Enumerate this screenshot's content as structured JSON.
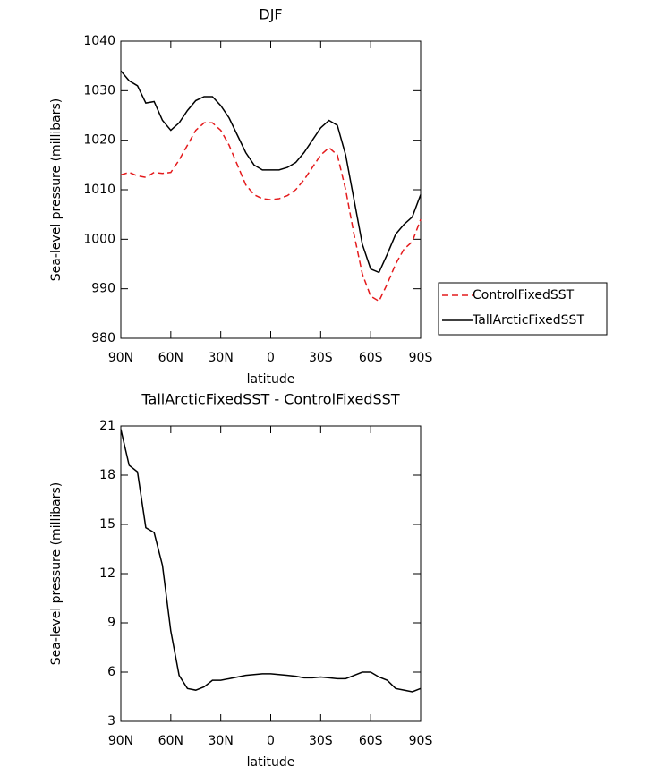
{
  "chart_data": [
    {
      "type": "line",
      "title": "DJF",
      "xlabel": "latitude",
      "ylabel": "Sea-level pressure (millibars)",
      "x": [
        90,
        85,
        80,
        75,
        70,
        65,
        60,
        55,
        50,
        45,
        40,
        35,
        30,
        25,
        20,
        15,
        10,
        5,
        0,
        -5,
        -10,
        -15,
        -20,
        -25,
        -30,
        -35,
        -40,
        -45,
        -50,
        -55,
        -60,
        -65,
        -70,
        -75,
        -80,
        -85,
        -90
      ],
      "series": [
        {
          "name": "ControlFixedSST",
          "color": "#e41a1c",
          "style": "dashed",
          "values": [
            1013,
            1013.5,
            1012.8,
            1012.5,
            1013.5,
            1013.3,
            1013.5,
            1016,
            1019,
            1022,
            1023.5,
            1023.5,
            1022,
            1019,
            1015,
            1011,
            1009,
            1008.2,
            1008,
            1008.2,
            1008.8,
            1010,
            1012,
            1014.5,
            1017,
            1018.5,
            1017,
            1010,
            1001,
            993,
            988.5,
            987.5,
            991,
            995,
            998,
            999.5,
            1004
          ]
        },
        {
          "name": "TallArcticFixedSST",
          "color": "#000000",
          "style": "solid",
          "values": [
            1034,
            1032,
            1031,
            1027.5,
            1027.8,
            1024,
            1022,
            1023.5,
            1026,
            1028,
            1028.8,
            1028.8,
            1027,
            1024.5,
            1021,
            1017.5,
            1015,
            1014,
            1014,
            1014,
            1014.5,
            1015.5,
            1017.5,
            1020,
            1022.5,
            1024,
            1023,
            1017,
            1008,
            999,
            994,
            993.3,
            997,
            1001,
            1003,
            1004.5,
            1009
          ]
        }
      ],
      "xlim": [
        90,
        -90
      ],
      "xticks": [
        {
          "value": 90,
          "label": "90N"
        },
        {
          "value": 60,
          "label": "60N"
        },
        {
          "value": 30,
          "label": "30N"
        },
        0,
        {
          "value": -30,
          "label": "30S"
        },
        {
          "value": -60,
          "label": "60S"
        },
        {
          "value": -90,
          "label": "90S"
        }
      ],
      "ylim": [
        980,
        1040
      ],
      "yticks": [
        980,
        990,
        1000,
        1010,
        1020,
        1030,
        1040
      ],
      "legend": "right"
    },
    {
      "type": "line",
      "title": "TallArcticFixedSST - ControlFixedSST",
      "xlabel": "latitude",
      "ylabel": "Sea-level pressure (millibars)",
      "x": [
        90,
        85,
        80,
        75,
        70,
        65,
        60,
        55,
        50,
        45,
        40,
        35,
        30,
        25,
        20,
        15,
        10,
        5,
        0,
        -5,
        -10,
        -15,
        -20,
        -25,
        -30,
        -35,
        -40,
        -45,
        -50,
        -55,
        -60,
        -65,
        -70,
        -75,
        -80,
        -85,
        -90
      ],
      "series": [
        {
          "color": "#000000",
          "style": "solid",
          "values": [
            20.8,
            18.6,
            18.2,
            14.8,
            14.5,
            12.5,
            8.5,
            5.8,
            5.0,
            4.9,
            5.1,
            5.5,
            5.5,
            5.6,
            5.7,
            5.8,
            5.85,
            5.9,
            5.9,
            5.85,
            5.8,
            5.75,
            5.65,
            5.65,
            5.7,
            5.65,
            5.6,
            5.6,
            5.8,
            6.0,
            6.0,
            5.7,
            5.5,
            5.0,
            4.9,
            4.8,
            5.0
          ]
        }
      ],
      "xlim": [
        90,
        -90
      ],
      "xticks": [
        {
          "value": 90,
          "label": "90N"
        },
        {
          "value": 60,
          "label": "60N"
        },
        {
          "value": 30,
          "label": "30N"
        },
        0,
        {
          "value": -30,
          "label": "30S"
        },
        {
          "value": -60,
          "label": "60S"
        },
        {
          "value": -90,
          "label": "90S"
        }
      ],
      "ylim": [
        3,
        21
      ],
      "yticks": [
        3,
        6,
        9,
        12,
        15,
        18,
        21
      ]
    }
  ]
}
